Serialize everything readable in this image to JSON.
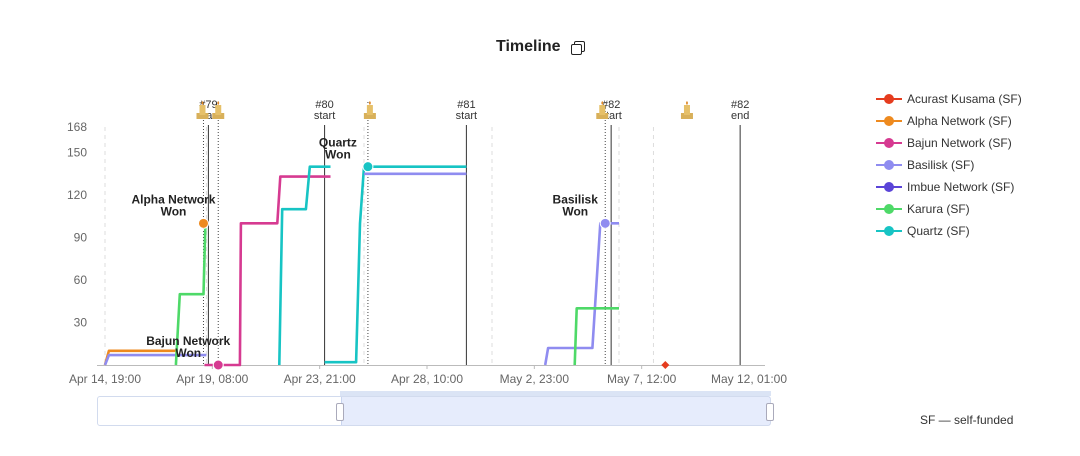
{
  "chart_data": {
    "type": "line",
    "title": "Timeline",
    "xlabel": "",
    "ylabel": "",
    "x_ticks": [
      "Apr 14, 19:00",
      "Apr 19, 08:00",
      "Apr 23, 21:00",
      "Apr 28, 10:00",
      "May 2, 23:00",
      "May 7, 12:00",
      "May 12, 01:00"
    ],
    "y_ticks": [
      30,
      60,
      90,
      120,
      150,
      168
    ],
    "ylim": [
      0,
      168
    ],
    "grid": false,
    "legend_position": "right",
    "colors": {
      "acurast": "#e53c1e",
      "alpha": "#ee8a1f",
      "bajun": "#d63a91",
      "basilisk": "#8f8cf0",
      "imbue": "#5a44d8",
      "karura": "#4ed968",
      "quartz": "#17c4c4"
    },
    "series": [
      {
        "key": "acurast",
        "name": "Acurast Kusama (SF)",
        "points": [
          [
            "May 8, 12:00",
            0
          ]
        ]
      },
      {
        "key": "alpha",
        "name": "Alpha Network (SF)",
        "points": [
          [
            "Apr 14, 19:00",
            0
          ],
          [
            "Apr 14, 23:00",
            10
          ],
          [
            "Apr 17, 19:00",
            10
          ]
        ]
      },
      {
        "key": "bajun",
        "name": "Bajun Network (SF)",
        "points": [
          [
            "Apr 19, 00:00",
            0
          ],
          [
            "Apr 20, 12:00",
            0
          ],
          [
            "Apr 20, 13:00",
            100
          ],
          [
            "Apr 22, 02:00",
            100
          ],
          [
            "Apr 22, 05:00",
            133
          ],
          [
            "Apr 24, 08:00",
            133
          ]
        ]
      },
      {
        "key": "basilisk",
        "name": "Basilisk (SF)",
        "points": [
          [
            "Apr 14, 19:00",
            0
          ],
          [
            "Apr 14, 23:00",
            7
          ],
          [
            "Apr 19, 02:00",
            7
          ]
        ]
      },
      {
        "key": "imbue",
        "name": "Imbue Network (SF)",
        "points": []
      },
      {
        "key": "karura",
        "name": "Karura (SF)",
        "points": [
          [
            "Apr 17, 19:00",
            0
          ],
          [
            "Apr 17, 23:00",
            50
          ],
          [
            "Apr 18, 23:00",
            50
          ],
          [
            "Apr 19, 01:00",
            100
          ],
          [
            "Apr 19, 02:00",
            100
          ]
        ]
      },
      {
        "key": "quartz",
        "name": "Quartz (SF)",
        "points": [
          [
            "Apr 22, 04:00",
            0
          ],
          [
            "Apr 22, 07:00",
            110
          ],
          [
            "Apr 23, 07:00",
            110
          ],
          [
            "Apr 23, 11:00",
            140
          ],
          [
            "Apr 24, 08:00",
            140
          ]
        ]
      }
    ],
    "series_zoomed": [
      {
        "key": "quartz",
        "points": [
          [
            "Apr 24, 02:00",
            2
          ],
          [
            "Apr 25, 10:00",
            2
          ],
          [
            "Apr 25, 14:00",
            100
          ],
          [
            "Apr 25, 18:00",
            140
          ],
          [
            "Apr 30, 02:00",
            140
          ]
        ]
      },
      {
        "key": "basilisk",
        "points": [
          [
            "Apr 25, 18:00",
            135
          ],
          [
            "Apr 30, 02:00",
            135
          ]
        ]
      },
      {
        "key": "basilisk",
        "points": [
          [
            "May 3, 10:00",
            0
          ],
          [
            "May 3, 13:00",
            12
          ],
          [
            "May 5, 10:00",
            12
          ],
          [
            "May 5, 18:00",
            100
          ],
          [
            "May 6, 13:00",
            100
          ]
        ]
      },
      {
        "key": "karura",
        "points": [
          [
            "May 4, 16:00",
            0
          ],
          [
            "May 4, 18:00",
            40
          ],
          [
            "May 6, 13:00",
            40
          ]
        ]
      }
    ],
    "auctions": [
      {
        "date": "Apr 19, 04:00",
        "label": "#79\nstart"
      },
      {
        "date": "Apr 24, 02:00",
        "label": "#80\nstart"
      },
      {
        "date": "Apr 30, 02:00",
        "label": "#81\nstart"
      },
      {
        "date": "May 6, 05:00",
        "label": "#82\nstart"
      },
      {
        "date": "May 11, 16:00",
        "label": "#82\nend"
      }
    ],
    "winners": [
      {
        "text": "Alpha Network\nWon",
        "series": "alpha",
        "date": "Apr 18, 23:00",
        "value": 100
      },
      {
        "text": "Bajun Network\nWon",
        "series": "bajun",
        "date": "Apr 19, 14:00",
        "value": 0
      },
      {
        "text": "Quartz\nWon",
        "series": "quartz",
        "date": "Apr 25, 22:00",
        "value": 140
      },
      {
        "text": "Basilisk\nWon",
        "series": "basilisk",
        "date": "May 5, 23:00",
        "value": 100
      }
    ]
  },
  "footnote": "SF — self-funded"
}
